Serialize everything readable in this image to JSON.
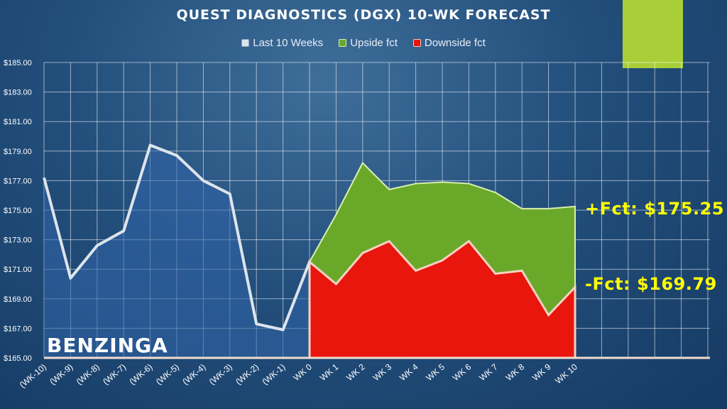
{
  "chart_data": {
    "type": "area",
    "title": "QUEST DIAGNOSTICS (DGX) 10-WK FORECAST",
    "xlabel": "",
    "ylabel": "",
    "categories": [
      "(WK-10)",
      "(WK-9)",
      "(WK-8)",
      "(WK-7)",
      "(WK-6)",
      "(WK-5)",
      "(WK-4)",
      "(WK-3)",
      "(WK-2)",
      "(WK-1)",
      "WK 0",
      "WK 1",
      "WK 2",
      "WK 3",
      "WK 4",
      "WK 5",
      "WK 6",
      "WK 7",
      "WK 8",
      "WK 9",
      "WK 10"
    ],
    "ylim": [
      165,
      185
    ],
    "yticks": [
      "$185.00",
      "$183.00",
      "$181.00",
      "$179.00",
      "$177.00",
      "$175.00",
      "$173.00",
      "$171.00",
      "$169.00",
      "$167.00",
      "$165.00"
    ],
    "grid": true,
    "legend_position": "top",
    "series": [
      {
        "name": "Last 10 Weeks",
        "color": "#dde4ec",
        "values": [
          177.2,
          170.4,
          172.6,
          173.6,
          179.4,
          178.7,
          177.0,
          176.1,
          167.3,
          166.9,
          171.5,
          null,
          null,
          null,
          null,
          null,
          null,
          null,
          null,
          null,
          null
        ]
      },
      {
        "name": "Upside fct",
        "color": "#6aa82a",
        "values": [
          null,
          null,
          null,
          null,
          null,
          null,
          null,
          null,
          null,
          null,
          171.5,
          174.7,
          178.2,
          176.4,
          176.8,
          176.9,
          176.8,
          176.2,
          175.1,
          175.1,
          175.25
        ]
      },
      {
        "name": "Downside fct",
        "color": "#e8160c",
        "values": [
          null,
          null,
          null,
          null,
          null,
          null,
          null,
          null,
          null,
          null,
          171.5,
          170.0,
          172.1,
          172.9,
          170.9,
          171.6,
          172.9,
          170.7,
          170.9,
          167.9,
          169.79
        ]
      }
    ],
    "annotations": {
      "upside": "+Fct: $175.25",
      "downside": "-Fct: $169.79"
    }
  },
  "branding": {
    "logo_text": "BENZINGA",
    "accent_color": "#a8cf38"
  }
}
